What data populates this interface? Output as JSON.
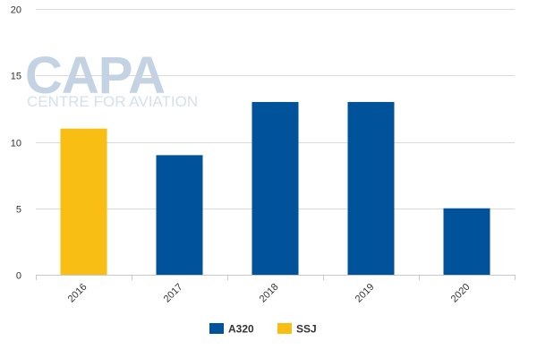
{
  "watermark": {
    "main": "CAPA",
    "sub": "CENTRE FOR AVIATION"
  },
  "chart_data": {
    "type": "bar",
    "title": "",
    "xlabel": "",
    "ylabel": "",
    "categories": [
      "2016",
      "2017",
      "2018",
      "2019",
      "2020"
    ],
    "ylim": [
      0,
      20
    ],
    "yticks": [
      0,
      5,
      10,
      15,
      20
    ],
    "grid": true,
    "legend_position": "bottom",
    "series": [
      {
        "name": "A320",
        "color": "#00529b",
        "values": [
          0,
          9,
          13,
          13,
          5
        ]
      },
      {
        "name": "SSJ",
        "color": "#f9be13",
        "values": [
          11,
          0,
          0,
          0,
          0
        ]
      }
    ]
  }
}
